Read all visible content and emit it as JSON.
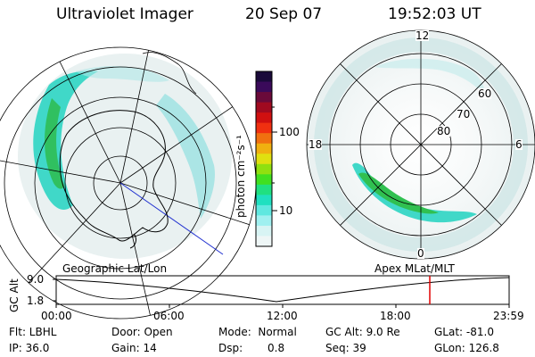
{
  "header": {
    "instrument": "Ultraviolet Imager",
    "date": "20 Sep 07",
    "time": "19:52:03 UT"
  },
  "colorbar": {
    "unit": "photon cm⁻²s⁻¹",
    "ticks": [
      "100",
      "10"
    ],
    "colors": [
      "#1a0a3a",
      "#3a0a5a",
      "#6a0a3a",
      "#a00a20",
      "#d01010",
      "#f03010",
      "#f07010",
      "#f0b010",
      "#e0e010",
      "#90e010",
      "#40e020",
      "#20e080",
      "#20e0c0",
      "#60e8e0",
      "#a0f0f0",
      "#d8f4f4",
      "#eef6f6"
    ]
  },
  "polar_plot": {
    "clock_labels": {
      "top": "12",
      "left": "18",
      "right": "6",
      "bottom": "0"
    },
    "lat_labels": [
      "60",
      "70",
      "80"
    ]
  },
  "timeline": {
    "left_label": "Geographic Lat/Lon",
    "right_label": "Apex MLat/MLT",
    "axis_title": "GC Alt",
    "y_ticks": [
      "9.0",
      "1.8"
    ],
    "x_ticks": [
      "00:00",
      "06:00",
      "12:00",
      "18:00",
      "23:59"
    ],
    "marker_color": "#e00000"
  },
  "info": {
    "filter": "Flt: LBHL",
    "ip": "IP: 36.0",
    "door": "Door: Open",
    "gain": "Gain: 14",
    "mode": "Mode:  Normal",
    "dsp_label": "Dsp:",
    "dsp_value": "0.8",
    "gc_alt": "GC Alt: 9.0 Re",
    "seq": "Seq: 39",
    "glat": "GLat: -81.0",
    "glon": "GLon: 126.8"
  }
}
